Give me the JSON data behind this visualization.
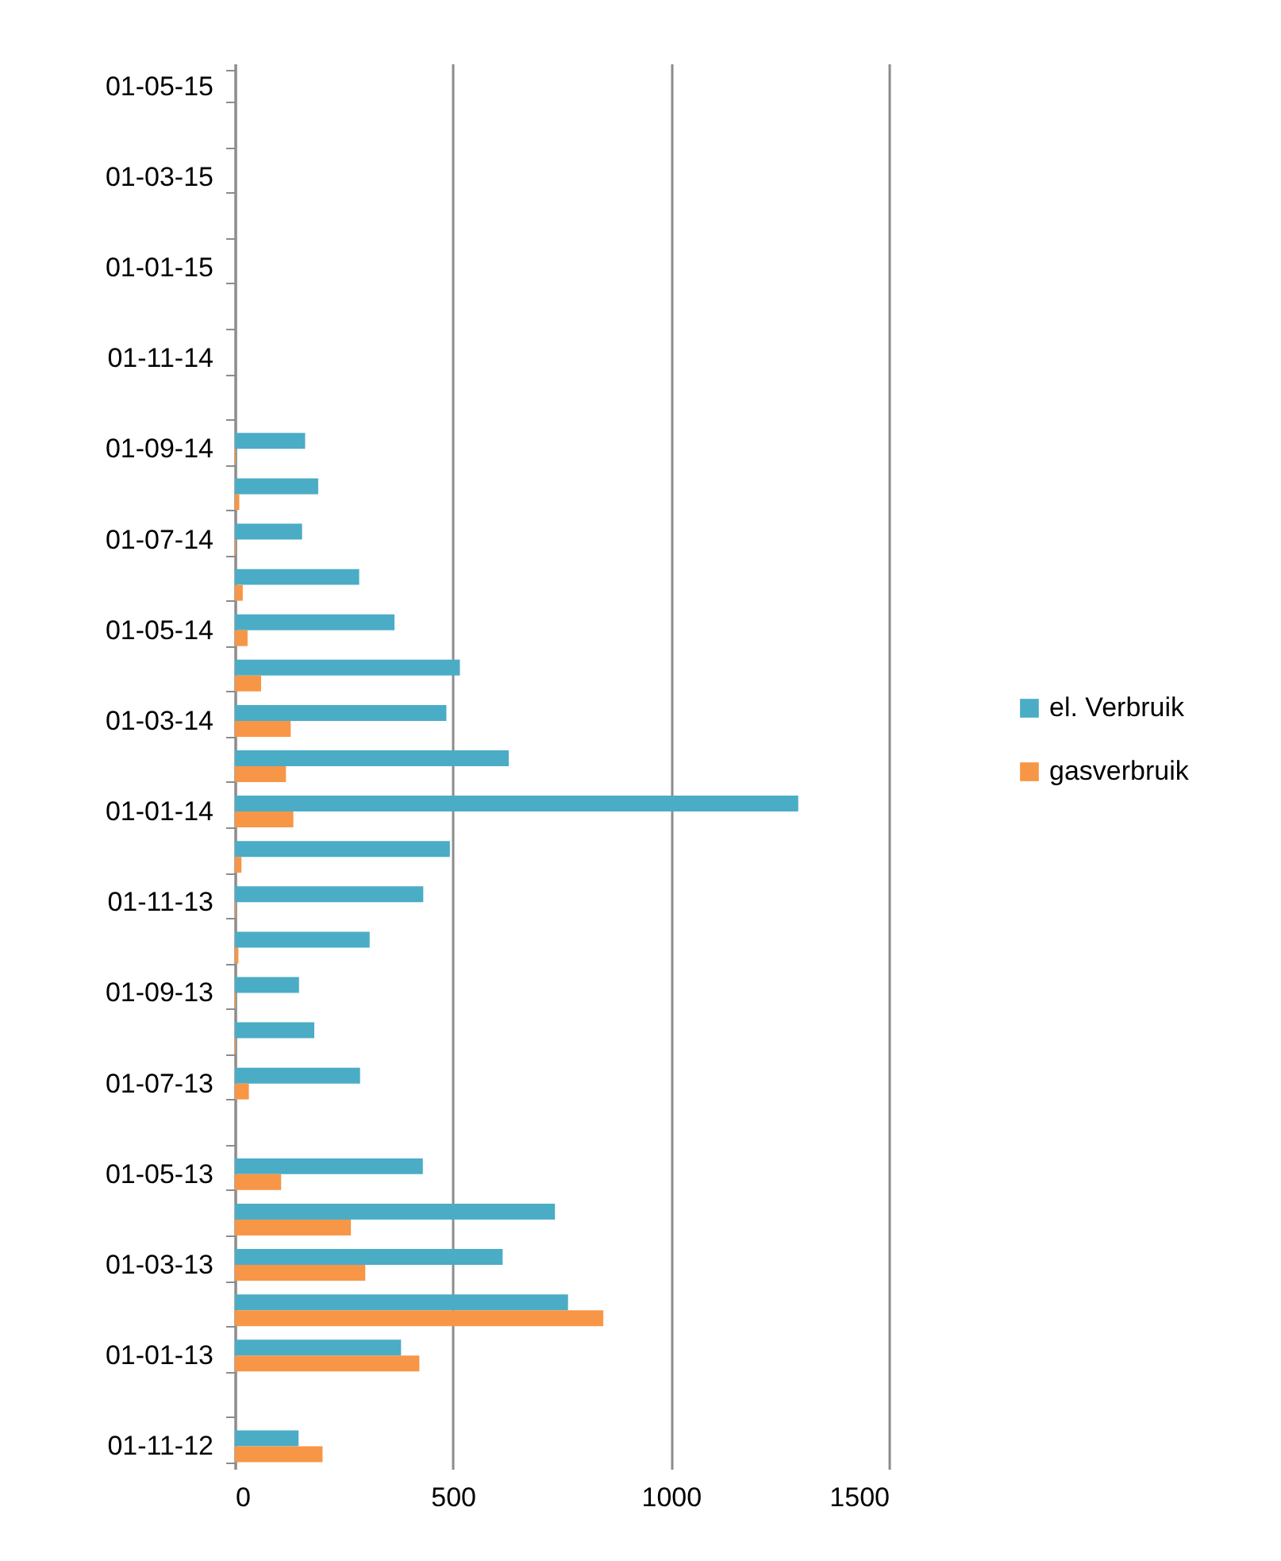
{
  "chart_data": {
    "type": "bar",
    "orientation": "horizontal",
    "categories": [
      "01-05-15",
      null,
      "01-03-15",
      null,
      "01-01-15",
      null,
      "01-11-14",
      null,
      "01-09-14",
      null,
      "01-07-14",
      null,
      "01-05-14",
      null,
      "01-03-14",
      null,
      "01-01-14",
      null,
      "01-11-13",
      null,
      "01-09-13",
      null,
      "01-07-13",
      null,
      "01-05-13",
      null,
      "01-03-13",
      null,
      "01-01-13",
      null,
      "01-11-12"
    ],
    "series": [
      {
        "name": "el. Verbruik",
        "color": "#4bacc6",
        "values": [
          null,
          null,
          null,
          null,
          null,
          null,
          null,
          null,
          161,
          191,
          154,
          285,
          366,
          516,
          485,
          628,
          1292,
          493,
          432,
          309,
          147,
          182,
          287,
          null,
          431,
          734,
          614,
          764,
          381,
          null,
          146
        ]
      },
      {
        "name": "gasverbruik",
        "color": "#f79646",
        "values": [
          null,
          null,
          null,
          null,
          null,
          null,
          null,
          null,
          2,
          10,
          2,
          18,
          29,
          60,
          128,
          117,
          134,
          15,
          2,
          8,
          2,
          2,
          32,
          null,
          106,
          266,
          299,
          845,
          423,
          null,
          201
        ]
      }
    ],
    "xlim": [
      0,
      1500
    ],
    "xticks": [
      0,
      500,
      1000,
      1500
    ],
    "grid": "x",
    "legend": "right"
  }
}
